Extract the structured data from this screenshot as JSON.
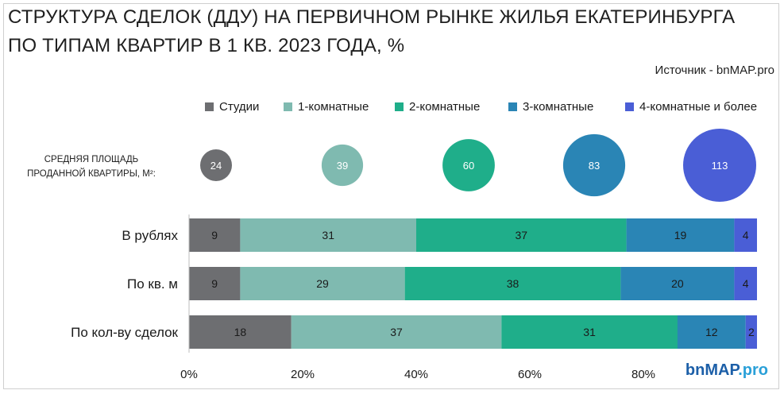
{
  "header": {
    "title_line1": "СТРУКТУРА СДЕЛОК (ДДУ) НА ПЕРВИЧНОМ РЫНКЕ ЖИЛЬЯ ЕКАТЕРИНБУРГА",
    "title_line2": "ПО ТИПАМ КВАРТИР В 1 КВ. 2023 ГОДА, %",
    "source": "Источник - bnMAP.pro"
  },
  "avg_area": {
    "label": "СРЕДНЯЯ ПЛОЩАДЬ ПРОДАННОЙ КВАРТИРЫ, М²:",
    "values": [
      24,
      39,
      60,
      83,
      113
    ]
  },
  "logo": {
    "part1": "bn",
    "part2": "MAP",
    "part3": ".pro"
  },
  "chart_data": {
    "type": "bar",
    "orientation": "horizontal",
    "stacked": true,
    "categories": [
      "В рублях",
      "По кв. м",
      "По кол-ву сделок"
    ],
    "series": [
      {
        "name": "Студии",
        "color": "#6d6e71",
        "values": [
          9,
          9,
          18
        ]
      },
      {
        "name": "1-комнатные",
        "color": "#7fbab0",
        "values": [
          31,
          29,
          37
        ]
      },
      {
        "name": "2-комнатные",
        "color": "#1fae8a",
        "values": [
          37,
          38,
          31
        ]
      },
      {
        "name": "3-комнатные",
        "color": "#2a85b5",
        "values": [
          19,
          20,
          12
        ]
      },
      {
        "name": "4-комнатные и более",
        "color": "#4a5ed6",
        "values": [
          4,
          4,
          2
        ]
      }
    ],
    "xticks": [
      "0%",
      "20%",
      "40%",
      "60%",
      "80%"
    ],
    "xlim": [
      0,
      100
    ],
    "legend_position": "top",
    "grid": false
  }
}
